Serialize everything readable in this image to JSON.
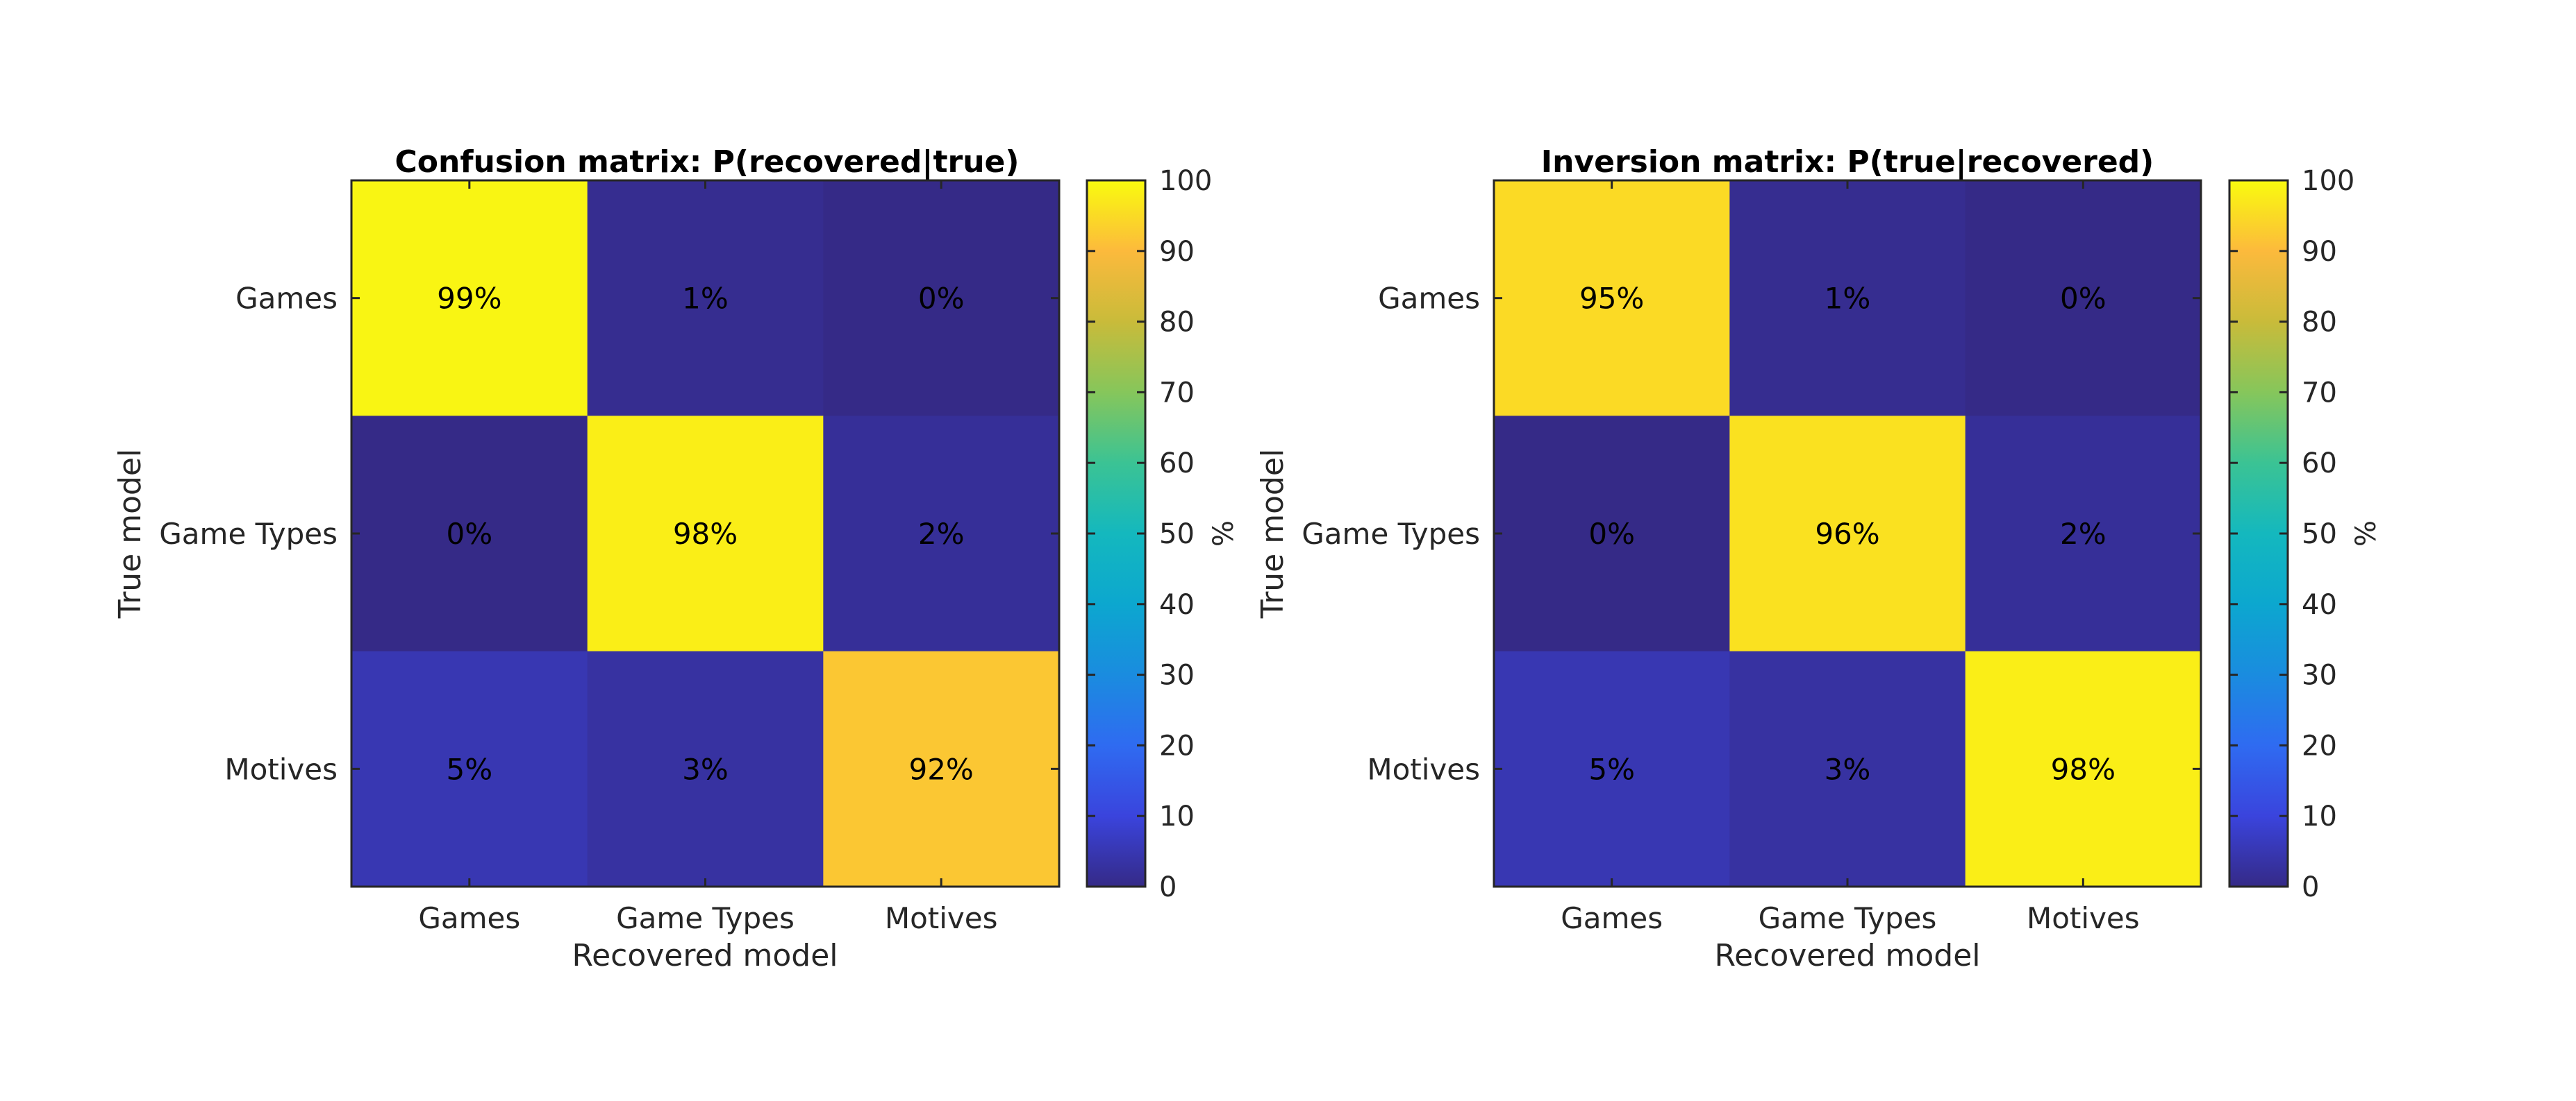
{
  "colormap": "parula",
  "colors": {
    "background": "#ffffff",
    "axis": "#262626",
    "text": "#000000"
  },
  "chart_data": [
    {
      "type": "heatmap",
      "title": "Confusion matrix: P(recovered|true)",
      "xlabel": "Recovered model",
      "ylabel": "True model",
      "x_categories": [
        "Games",
        "Game Types",
        "Motives"
      ],
      "y_categories": [
        "Games",
        "Game Types",
        "Motives"
      ],
      "values": [
        [
          99,
          1,
          0
        ],
        [
          0,
          98,
          2
        ],
        [
          5,
          3,
          92
        ]
      ],
      "cell_labels": [
        [
          "99%",
          "1%",
          "0%"
        ],
        [
          "0%",
          "98%",
          "2%"
        ],
        [
          "5%",
          "3%",
          "92%"
        ]
      ],
      "colorbar": {
        "label": "%",
        "range": [
          0,
          100
        ],
        "ticks": [
          "0",
          "10",
          "20",
          "30",
          "40",
          "50",
          "60",
          "70",
          "80",
          "90",
          "100"
        ]
      }
    },
    {
      "type": "heatmap",
      "title": "Inversion matrix: P(true|recovered)",
      "xlabel": "Recovered model",
      "ylabel": "True model",
      "x_categories": [
        "Games",
        "Game Types",
        "Motives"
      ],
      "y_categories": [
        "Games",
        "Game Types",
        "Motives"
      ],
      "values": [
        [
          95,
          1,
          0
        ],
        [
          0,
          96,
          2
        ],
        [
          5,
          3,
          98
        ]
      ],
      "cell_labels": [
        [
          "95%",
          "1%",
          "0%"
        ],
        [
          "0%",
          "96%",
          "2%"
        ],
        [
          "5%",
          "3%",
          "98%"
        ]
      ],
      "colorbar": {
        "label": "%",
        "range": [
          0,
          100
        ],
        "ticks": [
          "0",
          "10",
          "20",
          "30",
          "40",
          "50",
          "60",
          "70",
          "80",
          "90",
          "100"
        ]
      }
    }
  ]
}
